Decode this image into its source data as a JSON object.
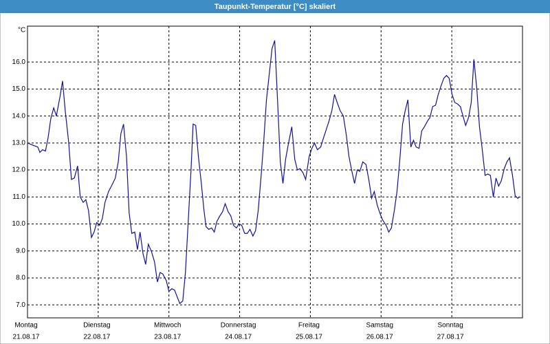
{
  "chart_data": {
    "type": "line",
    "title": "Taupunkt-Temperatur [°C] skaliert",
    "y_unit": "°C",
    "xlim": [
      0,
      168
    ],
    "xticks": [
      {
        "value": 0,
        "label": "Montag"
      },
      {
        "value": 24,
        "label": "Dienstag"
      },
      {
        "value": 48,
        "label": "Mittwoch"
      },
      {
        "value": 72,
        "label": "Donnerstag"
      },
      {
        "value": 96,
        "label": "Freitag"
      },
      {
        "value": 120,
        "label": "Samstag"
      },
      {
        "value": 144,
        "label": "Sonntag"
      }
    ],
    "xtick_dates": [
      "21.08.17",
      "22.08.17",
      "23.08.17",
      "24.08.17",
      "25.08.17",
      "26.08.17",
      "27.08.17"
    ],
    "ylim": [
      6.52,
      17.33
    ],
    "yticks": [
      {
        "value": 7,
        "label": "7.0"
      },
      {
        "value": 8,
        "label": "8.0"
      },
      {
        "value": 9,
        "label": "9.0"
      },
      {
        "value": 10,
        "label": "10.0"
      },
      {
        "value": 11,
        "label": "11.0"
      },
      {
        "value": 12,
        "label": "12.0"
      },
      {
        "value": 13,
        "label": "13.0"
      },
      {
        "value": 14,
        "label": "14.0"
      },
      {
        "value": 15,
        "label": "15.0"
      },
      {
        "value": 16,
        "label": "16.0"
      }
    ],
    "grid": true,
    "color": "#1010a0",
    "x": [
      0,
      2.3,
      3.5,
      4.2,
      5.1,
      6.1,
      7.0,
      7.9,
      8.9,
      9.8,
      11.0,
      11.9,
      12.8,
      14.0,
      14.9,
      15.9,
      17.0,
      17.9,
      18.9,
      19.8,
      20.7,
      21.7,
      22.6,
      23.5,
      24.5,
      25.4,
      26.3,
      27.5,
      28.7,
      29.8,
      30.8,
      31.7,
      32.6,
      33.6,
      34.5,
      35.4,
      36.4,
      37.3,
      38.2,
      39.2,
      40.1,
      41.0,
      42.0,
      43.1,
      44.1,
      45.0,
      45.9,
      47.1,
      48.0,
      49.0,
      49.9,
      50.8,
      51.7,
      52.7,
      53.6,
      54.5,
      55.5,
      56.2,
      57.1,
      58.0,
      59.0,
      59.9,
      60.6,
      61.5,
      62.5,
      63.4,
      64.3,
      65.3,
      66.2,
      67.1,
      68.1,
      69.0,
      69.9,
      70.9,
      71.8,
      72.7,
      73.7,
      74.6,
      75.5,
      76.5,
      77.4,
      78.3,
      79.3,
      80.2,
      81.1,
      82.1,
      83.0,
      83.9,
      84.9,
      85.8,
      86.7,
      87.6,
      88.6,
      89.7,
      90.7,
      91.6,
      92.5,
      93.5,
      94.4,
      95.6,
      96.5,
      97.4,
      98.4,
      99.5,
      100.5,
      101.4,
      102.3,
      103.3,
      104.2,
      105.1,
      106.1,
      107.2,
      108.2,
      109.1,
      110.0,
      111.0,
      111.9,
      112.8,
      113.8,
      114.9,
      115.9,
      116.8,
      117.7,
      118.7,
      119.6,
      120.5,
      121.7,
      122.6,
      123.5,
      124.5,
      125.4,
      126.3,
      127.3,
      128.2,
      129.1,
      130.1,
      131.0,
      131.9,
      132.9,
      133.8,
      134.7,
      135.7,
      136.6,
      137.5,
      138.5,
      139.4,
      140.3,
      141.3,
      142.2,
      143.1,
      144.1,
      145.0,
      145.9,
      146.9,
      147.8,
      148.7,
      149.7,
      150.6,
      151.5,
      152.5,
      153.4,
      154.3,
      155.3,
      156.2,
      157.1,
      158.1,
      159.0,
      159.9,
      160.8,
      161.8,
      162.7,
      163.6,
      164.6,
      165.5,
      166.4,
      166.9
    ],
    "values": [
      13.0,
      12.9,
      12.85,
      12.65,
      12.75,
      12.7,
      13.2,
      13.9,
      14.3,
      14.0,
      14.7,
      15.3,
      14.2,
      13.0,
      11.65,
      11.7,
      12.15,
      11.0,
      10.8,
      10.9,
      10.5,
      9.5,
      9.7,
      10.05,
      9.95,
      10.2,
      10.8,
      11.2,
      11.45,
      11.7,
      12.3,
      13.35,
      13.7,
      12.5,
      10.4,
      9.65,
      9.7,
      9.05,
      9.7,
      8.9,
      8.5,
      9.25,
      9.0,
      8.6,
      7.85,
      8.2,
      8.15,
      7.9,
      7.5,
      7.6,
      7.55,
      7.3,
      7.05,
      7.15,
      8.2,
      10.0,
      12.0,
      13.7,
      13.65,
      12.5,
      11.5,
      10.5,
      9.9,
      9.8,
      9.85,
      9.7,
      10.1,
      10.3,
      10.45,
      10.75,
      10.45,
      10.3,
      9.95,
      9.85,
      10.0,
      9.95,
      9.65,
      9.65,
      9.8,
      9.55,
      9.75,
      10.5,
      11.8,
      13.1,
      14.6,
      15.6,
      16.5,
      16.8,
      14.5,
      12.3,
      11.5,
      12.4,
      13.0,
      13.6,
      12.4,
      12.0,
      12.05,
      11.9,
      11.65,
      12.5,
      12.8,
      13.0,
      12.75,
      12.85,
      13.2,
      13.5,
      13.8,
      14.2,
      14.8,
      14.5,
      14.2,
      14.0,
      13.3,
      12.5,
      12.0,
      11.5,
      12.0,
      11.95,
      12.3,
      12.2,
      11.6,
      10.95,
      11.2,
      10.7,
      10.4,
      10.15,
      9.95,
      9.7,
      9.85,
      10.5,
      11.2,
      12.3,
      13.7,
      14.2,
      14.6,
      12.85,
      13.1,
      12.85,
      12.8,
      13.45,
      13.6,
      13.8,
      13.95,
      14.35,
      14.4,
      14.8,
      15.1,
      15.4,
      15.5,
      15.4,
      14.8,
      14.5,
      14.45,
      14.35,
      14.0,
      13.65,
      13.95,
      14.5,
      16.1,
      15.0,
      13.6,
      12.8,
      11.8,
      11.85,
      11.8,
      11.0,
      11.7,
      11.4,
      11.6,
      12.05,
      12.3,
      12.45,
      11.8,
      11.05,
      10.95,
      11.0
    ]
  }
}
